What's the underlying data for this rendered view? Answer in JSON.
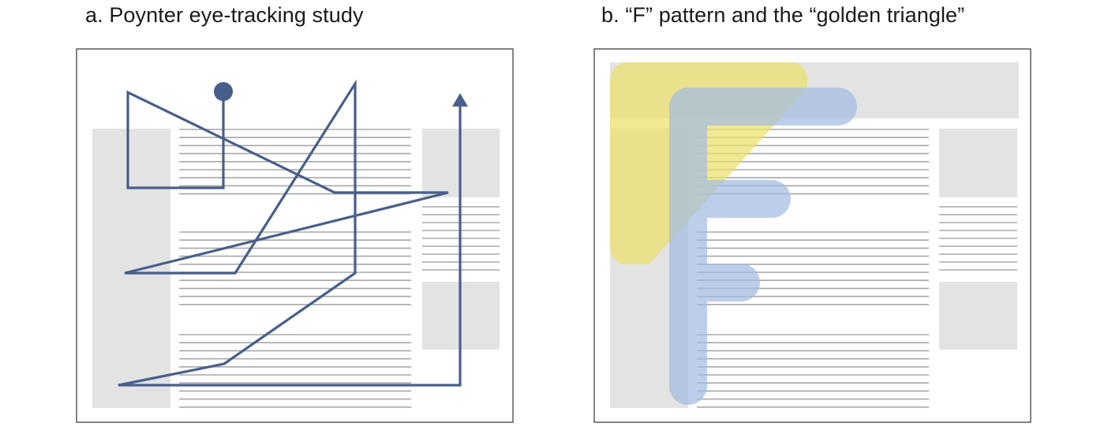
{
  "panels": [
    {
      "id": "a",
      "title": "a. Poynter eye-tracking study"
    },
    {
      "id": "b",
      "title": "b. “F” pattern and the “golden triangle”"
    }
  ],
  "colors": {
    "background": "#ffffff",
    "frame": "#333333",
    "placeholder_block": "#e3e3e3",
    "text_line": "#a8a8a8",
    "gaze_path": "#485f8b",
    "golden_triangle": "#ebe06a",
    "f_pattern": "#a4bbe2"
  }
}
